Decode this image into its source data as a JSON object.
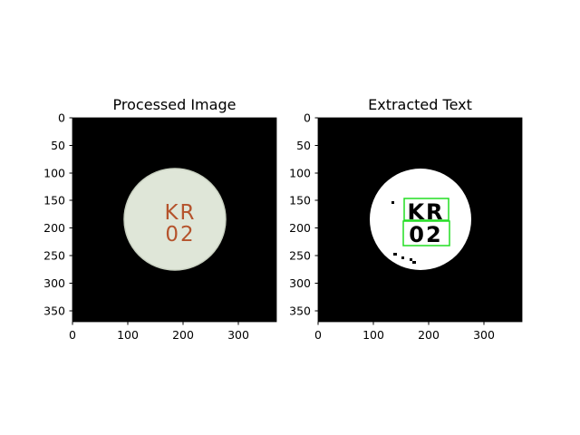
{
  "panels": [
    {
      "title": "Processed Image",
      "x_ticks": [
        "0",
        "100",
        "200",
        "300"
      ],
      "y_ticks": [
        "0",
        "50",
        "100",
        "150",
        "200",
        "250",
        "300",
        "350"
      ],
      "pill_text": [
        "KR",
        "02"
      ],
      "background": "#000000",
      "pill_color": "#dfe6d8",
      "imprint_color": "#b5532c"
    },
    {
      "title": "Extracted Text",
      "x_ticks": [
        "0",
        "100",
        "200",
        "300"
      ],
      "y_ticks": [
        "0",
        "50",
        "100",
        "150",
        "200",
        "250",
        "300",
        "350"
      ],
      "detected_text": [
        "KR",
        "02"
      ],
      "background": "#000000",
      "pill_color": "#ffffff",
      "box_color": "#22dd22"
    }
  ]
}
